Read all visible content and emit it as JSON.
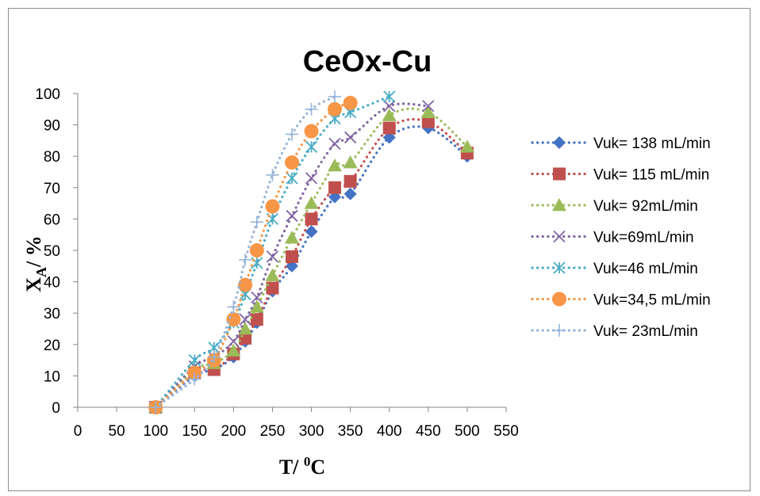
{
  "chart_data": {
    "type": "scatter",
    "title": "CeOx-Cu",
    "xlabel": "T/ °C",
    "ylabel": "XA/ %",
    "xlim": [
      0,
      550
    ],
    "ylim": [
      0,
      100
    ],
    "x_ticks": [
      0,
      50,
      100,
      150,
      200,
      250,
      300,
      350,
      400,
      450,
      500,
      550
    ],
    "y_ticks": [
      0,
      10,
      20,
      30,
      40,
      50,
      60,
      70,
      80,
      90,
      100
    ],
    "grid": false,
    "legend": "right",
    "line_style": "dotted smoothed",
    "series": [
      {
        "name": "Vuk= 138 mL/min",
        "color": "#4472c4",
        "marker": "diamond",
        "x": [
          100,
          150,
          175,
          200,
          215,
          230,
          250,
          275,
          300,
          330,
          350,
          400,
          450,
          500
        ],
        "y": [
          0,
          10,
          12,
          16,
          21,
          27,
          37,
          45,
          56,
          67,
          68,
          86,
          89,
          80
        ]
      },
      {
        "name": "Vuk= 115 mL/min",
        "color": "#c0504d",
        "marker": "square",
        "x": [
          100,
          150,
          175,
          200,
          215,
          230,
          250,
          275,
          300,
          330,
          350,
          400,
          450,
          500
        ],
        "y": [
          0,
          11,
          12,
          17,
          22,
          28,
          38,
          48,
          60,
          70,
          72,
          89,
          91,
          81
        ]
      },
      {
        "name": "Vuk= 92mL/min",
        "color": "#9bbb59",
        "marker": "triangle",
        "x": [
          100,
          150,
          175,
          200,
          215,
          230,
          250,
          275,
          300,
          330,
          350,
          400,
          450,
          500
        ],
        "y": [
          0,
          12,
          14,
          18,
          25,
          32,
          42,
          54,
          65,
          77,
          78,
          93,
          94,
          83
        ]
      },
      {
        "name": "Vuk=69mL/min",
        "color": "#8064a2",
        "marker": "x",
        "x": [
          100,
          150,
          175,
          200,
          215,
          230,
          250,
          275,
          300,
          330,
          350,
          400,
          450
        ],
        "y": [
          0,
          13,
          16,
          21,
          28,
          35,
          48,
          61,
          73,
          84,
          86,
          96,
          96
        ]
      },
      {
        "name": "Vuk=46 mL/min",
        "color": "#4bacc6",
        "marker": "star",
        "x": [
          100,
          150,
          175,
          200,
          215,
          230,
          250,
          275,
          300,
          330,
          350,
          400
        ],
        "y": [
          0,
          15,
          19,
          27,
          36,
          46,
          60,
          73,
          83,
          92,
          94,
          99
        ]
      },
      {
        "name": "Vuk=34,5 mL/min",
        "color": "#f79646",
        "marker": "circle",
        "x": [
          100,
          150,
          175,
          200,
          215,
          230,
          250,
          275,
          300,
          330,
          350
        ],
        "y": [
          0,
          11,
          15,
          28,
          39,
          50,
          64,
          78,
          88,
          95,
          97
        ]
      },
      {
        "name": "Vuk= 23mL/min",
        "color": "#95b3d7",
        "marker": "plus",
        "x": [
          100,
          150,
          175,
          200,
          215,
          230,
          250,
          275,
          300,
          330
        ],
        "y": [
          0,
          9,
          16,
          32,
          47,
          59,
          74,
          87,
          95,
          99
        ]
      }
    ]
  }
}
